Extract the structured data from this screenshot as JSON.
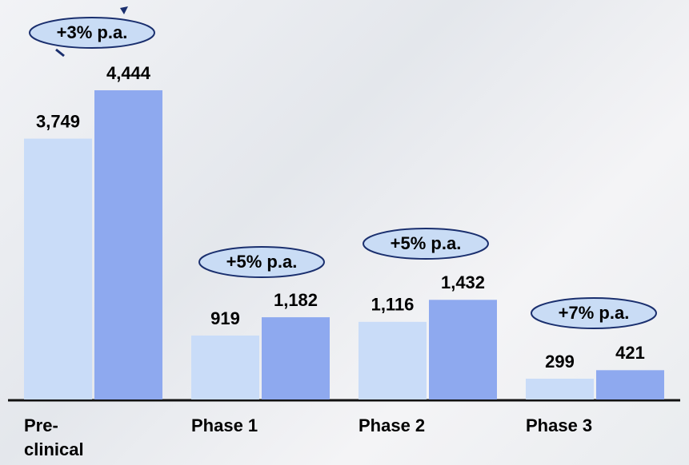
{
  "chart_data": {
    "type": "bar",
    "categories": [
      "Pre-\nclinical",
      "Phase 1",
      "Phase 2",
      "Phase 3"
    ],
    "series": [
      {
        "color": "#c9dcf8",
        "values": [
          3749,
          919,
          1116,
          299
        ],
        "value_labels": [
          "3,749",
          "919",
          "1,116",
          "299"
        ]
      },
      {
        "color": "#8ea9ef",
        "values": [
          4444,
          1182,
          1432,
          421
        ],
        "value_labels": [
          "4,444",
          "1,182",
          "1,432",
          "421"
        ]
      }
    ],
    "annotations": [
      "+3% p.a.",
      "+5% p.a.",
      "+5% p.a.",
      "+7% p.a."
    ]
  }
}
